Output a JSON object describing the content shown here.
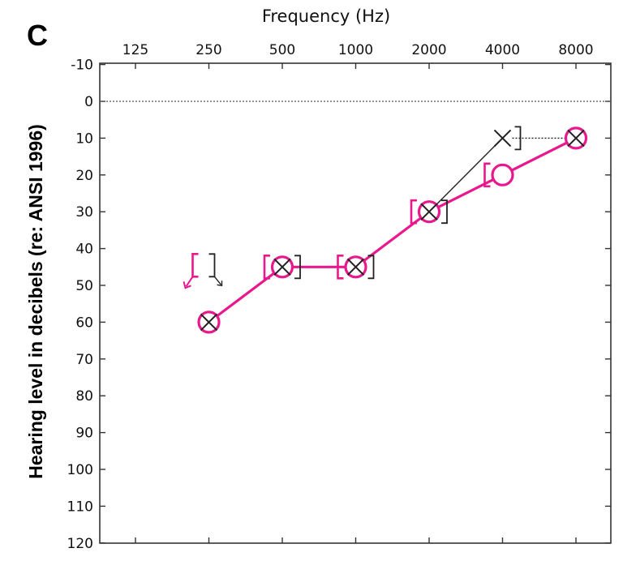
{
  "chart_data": {
    "type": "audiogram",
    "panel_label": "C",
    "xlabel": "Frequency (Hz)",
    "ylabel": "Hearing level in decibels (re: ANSI 1996)",
    "x_scale": "log2",
    "x_ticks": [
      125,
      250,
      500,
      1000,
      2000,
      4000,
      8000
    ],
    "y_ticks": [
      -10,
      0,
      10,
      20,
      30,
      40,
      50,
      60,
      70,
      80,
      90,
      100,
      110,
      120
    ],
    "ylim": [
      -10,
      120
    ],
    "y_inverted": true,
    "reference_line": 0,
    "colors": {
      "right_ear": "#e8198c",
      "left_ear": "#222222"
    },
    "series": [
      {
        "ear": "right",
        "symbol": "circle",
        "connected": true,
        "points": [
          {
            "x": 250,
            "y": 60
          },
          {
            "x": 500,
            "y": 45
          },
          {
            "x": 1000,
            "y": 45
          },
          {
            "x": 2000,
            "y": 30
          },
          {
            "x": 4000,
            "y": 20
          },
          {
            "x": 8000,
            "y": 10
          }
        ]
      },
      {
        "ear": "left",
        "symbol": "cross",
        "connected": true,
        "points": [
          {
            "x": 250,
            "y": 60
          },
          {
            "x": 500,
            "y": 45
          },
          {
            "x": 1000,
            "y": 45
          },
          {
            "x": 2000,
            "y": 30
          },
          {
            "x": 4000,
            "y": 10
          },
          {
            "x": 8000,
            "y": 10
          }
        ]
      },
      {
        "ear": "right",
        "symbol": "bone-bracket-left",
        "points": [
          {
            "x": 250,
            "y": 45,
            "no_response": true
          },
          {
            "x": 500,
            "y": 45
          },
          {
            "x": 1000,
            "y": 45
          },
          {
            "x": 2000,
            "y": 30
          },
          {
            "x": 4000,
            "y": 20
          }
        ]
      },
      {
        "ear": "left",
        "symbol": "bone-bracket-right",
        "points": [
          {
            "x": 250,
            "y": 45,
            "no_response": true
          },
          {
            "x": 500,
            "y": 45
          },
          {
            "x": 1000,
            "y": 45
          },
          {
            "x": 2000,
            "y": 30
          },
          {
            "x": 4000,
            "y": 10
          }
        ]
      }
    ]
  }
}
